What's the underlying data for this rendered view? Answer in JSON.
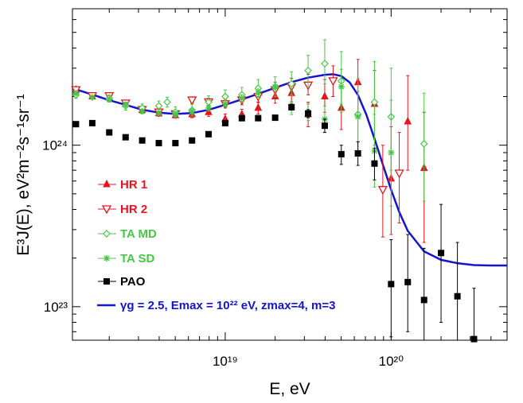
{
  "chart_data": {
    "type": "scatter",
    "xlabel": "E, eV",
    "ylabel": "E³J(E), eV²m⁻²s⁻¹sr⁻¹",
    "xscale": "log",
    "yscale": "log",
    "xlim": [
      1.2e+18,
      5e+20
    ],
    "ylim": [
      6.2e+22,
      7e+24
    ],
    "x_tick_labels": [
      "10¹⁹",
      "10²⁰"
    ],
    "y_tick_labels": [
      "10²³",
      "10²⁴"
    ],
    "legend_position": "bottom-left",
    "grid": false,
    "series": [
      {
        "name": "HR 1",
        "color": "#e8141c",
        "marker": "triangle-filled",
        "points": [
          {
            "x": 1.26e+18,
            "y": 2.2e+24,
            "lo": 2.12e+24,
            "hi": 2.28e+24
          },
          {
            "x": 1.58e+18,
            "y": 2e+24,
            "lo": 1.94e+24,
            "hi": 2.07e+24
          },
          {
            "x": 2e+18,
            "y": 1.97e+24,
            "lo": 1.91e+24,
            "hi": 2.04e+24
          },
          {
            "x": 2.51e+18,
            "y": 1.8e+24,
            "lo": 1.74e+24,
            "hi": 1.86e+24
          },
          {
            "x": 3.16e+18,
            "y": 1.65e+24,
            "lo": 1.59e+24,
            "hi": 1.71e+24
          },
          {
            "x": 3.98e+18,
            "y": 1.57e+24,
            "lo": 1.51e+24,
            "hi": 1.63e+24
          },
          {
            "x": 5.01e+18,
            "y": 1.53e+24,
            "lo": 1.47e+24,
            "hi": 1.59e+24
          },
          {
            "x": 6.31e+18,
            "y": 1.55e+24,
            "lo": 1.48e+24,
            "hi": 1.62e+24
          },
          {
            "x": 7.94e+18,
            "y": 1.6e+24,
            "lo": 1.51e+24,
            "hi": 1.69e+24
          },
          {
            "x": 1e+19,
            "y": 1.45e+24,
            "lo": 1.35e+24,
            "hi": 1.56e+24
          },
          {
            "x": 1.26e+19,
            "y": 1.55e+24,
            "lo": 1.44e+24,
            "hi": 1.67e+24
          },
          {
            "x": 1.58e+19,
            "y": 1.7e+24,
            "lo": 1.56e+24,
            "hi": 1.85e+24
          },
          {
            "x": 2e+19,
            "y": 2e+24,
            "lo": 1.82e+24,
            "hi": 2.2e+24
          },
          {
            "x": 2.51e+19,
            "y": 2.1e+24,
            "lo": 1.85e+24,
            "hi": 2.4e+24
          },
          {
            "x": 3.16e+19,
            "y": 1.55e+24,
            "lo": 1.3e+24,
            "hi": 1.85e+24
          },
          {
            "x": 3.98e+19,
            "y": 2e+24,
            "lo": 1.6e+24,
            "hi": 2.55e+24
          },
          {
            "x": 5.01e+19,
            "y": 1.7e+24,
            "lo": 1.25e+24,
            "hi": 2.3e+24
          },
          {
            "x": 6.31e+19,
            "y": 2.45e+24,
            "lo": 1.6e+24,
            "hi": 3.4e+24
          },
          {
            "x": 7.94e+19,
            "y": 1.8e+24,
            "lo": 1e+24,
            "hi": 2.9e+24
          },
          {
            "x": 1e+20,
            "y": 6.2e+23,
            "lo": 2.8e+23,
            "hi": 1.3e+24
          },
          {
            "x": 1.26e+20,
            "y": 1.4e+24,
            "lo": 7e+23,
            "hi": 2.7e+24
          },
          {
            "x": 1.58e+20,
            "y": 7.2e+23,
            "lo": 2.5e+23,
            "hi": 1.6e+24
          }
        ]
      },
      {
        "name": "HR 2",
        "color": "#e8141c",
        "marker": "triangle-down-open",
        "points": [
          {
            "x": 1.26e+18,
            "y": 2.2e+24,
            "lo": 2.14e+24,
            "hi": 2.26e+24
          },
          {
            "x": 1.58e+18,
            "y": 2.02e+24,
            "lo": 1.96e+24,
            "hi": 2.08e+24
          },
          {
            "x": 2e+18,
            "y": 2.02e+24,
            "lo": 1.96e+24,
            "hi": 2.08e+24
          },
          {
            "x": 2.51e+18,
            "y": 1.82e+24,
            "lo": 1.76e+24,
            "hi": 1.88e+24
          },
          {
            "x": 3.16e+18,
            "y": 1.66e+24,
            "lo": 1.6e+24,
            "hi": 1.72e+24
          },
          {
            "x": 3.98e+18,
            "y": 1.6e+24,
            "lo": 1.54e+24,
            "hi": 1.66e+24
          },
          {
            "x": 5.01e+18,
            "y": 1.56e+24,
            "lo": 1.5e+24,
            "hi": 1.62e+24
          },
          {
            "x": 6.31e+18,
            "y": 1.9e+24,
            "lo": 1.82e+24,
            "hi": 1.98e+24
          },
          {
            "x": 7.94e+18,
            "y": 1.85e+24,
            "lo": 1.76e+24,
            "hi": 1.95e+24
          },
          {
            "x": 1e+19,
            "y": 1.8e+24,
            "lo": 1.7e+24,
            "hi": 1.92e+24
          },
          {
            "x": 1.26e+19,
            "y": 1.9e+24,
            "lo": 1.78e+24,
            "hi": 2.04e+24
          },
          {
            "x": 1.58e+19,
            "y": 2e+24,
            "lo": 1.84e+24,
            "hi": 2.18e+24
          },
          {
            "x": 2e+19,
            "y": 2.2e+24,
            "lo": 2e+24,
            "hi": 2.45e+24
          },
          {
            "x": 2.51e+19,
            "y": 2.3e+24,
            "lo": 2.05e+24,
            "hi": 2.6e+24
          },
          {
            "x": 3.16e+19,
            "y": 2.35e+24,
            "lo": 2.05e+24,
            "hi": 2.75e+24
          },
          {
            "x": 4.47e+19,
            "y": 2.5e+24,
            "lo": 2e+24,
            "hi": 3.1e+24
          },
          {
            "x": 8.91e+19,
            "y": 5.3e+23,
            "lo": 2.7e+23,
            "hi": 1e+24
          },
          {
            "x": 1.12e+20,
            "y": 6.7e+23,
            "lo": 3.3e+23,
            "hi": 1.2e+24
          }
        ]
      },
      {
        "name": "TA MD",
        "color": "#46c846",
        "marker": "diamond-open",
        "points": [
          {
            "x": 1.26e+18,
            "y": 2.05e+24,
            "lo": 1.95e+24,
            "hi": 2.15e+24
          },
          {
            "x": 2e+18,
            "y": 1.95e+24,
            "lo": 1.85e+24,
            "hi": 2.05e+24
          },
          {
            "x": 2.51e+18,
            "y": 1.75e+24,
            "lo": 1.65e+24,
            "hi": 1.85e+24
          },
          {
            "x": 3.16e+18,
            "y": 1.7e+24,
            "lo": 1.6e+24,
            "hi": 1.8e+24
          },
          {
            "x": 3.98e+18,
            "y": 1.75e+24,
            "lo": 1.62e+24,
            "hi": 1.88e+24
          },
          {
            "x": 4.47e+18,
            "y": 1.85e+24,
            "lo": 1.72e+24,
            "hi": 1.98e+24
          },
          {
            "x": 5.01e+18,
            "y": 1.6e+24,
            "lo": 1.48e+24,
            "hi": 1.73e+24
          },
          {
            "x": 6.31e+18,
            "y": 1.65e+24,
            "lo": 1.52e+24,
            "hi": 1.79e+24
          },
          {
            "x": 7.94e+18,
            "y": 1.85e+24,
            "lo": 1.69e+24,
            "hi": 2.02e+24
          },
          {
            "x": 1e+19,
            "y": 2e+24,
            "lo": 1.82e+24,
            "hi": 2.2e+24
          },
          {
            "x": 1.26e+19,
            "y": 2.05e+24,
            "lo": 1.85e+24,
            "hi": 2.28e+24
          },
          {
            "x": 1.58e+19,
            "y": 2.25e+24,
            "lo": 2e+24,
            "hi": 2.55e+24
          },
          {
            "x": 2e+19,
            "y": 2.3e+24,
            "lo": 2e+24,
            "hi": 2.65e+24
          },
          {
            "x": 2.51e+19,
            "y": 2.4e+24,
            "lo": 2.05e+24,
            "hi": 2.85e+24
          },
          {
            "x": 3.16e+19,
            "y": 2.9e+24,
            "lo": 2.3e+24,
            "hi": 3.6e+24
          },
          {
            "x": 3.98e+19,
            "y": 3.2e+24,
            "lo": 2.4e+24,
            "hi": 4.5e+24
          },
          {
            "x": 5.01e+19,
            "y": 2.5e+24,
            "lo": 1.6e+24,
            "hi": 3.8e+24
          },
          {
            "x": 6.31e+19,
            "y": 1.55e+24,
            "lo": 9e+23,
            "hi": 2.6e+24
          },
          {
            "x": 7.94e+19,
            "y": 1.85e+24,
            "lo": 1e+24,
            "hi": 3.3e+24
          },
          {
            "x": 1e+20,
            "y": 1.5e+24,
            "lo": 7e+23,
            "hi": 3e+24
          },
          {
            "x": 1.58e+20,
            "y": 1.02e+24,
            "lo": 4.5e+23,
            "hi": 2.1e+24
          }
        ]
      },
      {
        "name": "TA SD",
        "color": "#46c846",
        "marker": "star",
        "points": [
          {
            "x": 1.26e+18,
            "y": 2.1e+24,
            "lo": 2.05e+24,
            "hi": 2.15e+24
          },
          {
            "x": 1.58e+18,
            "y": 1.98e+24,
            "lo": 1.93e+24,
            "hi": 2.03e+24
          },
          {
            "x": 2e+18,
            "y": 1.92e+24,
            "lo": 1.87e+24,
            "hi": 1.97e+24
          },
          {
            "x": 2.51e+18,
            "y": 1.78e+24,
            "lo": 1.73e+24,
            "hi": 1.83e+24
          },
          {
            "x": 3.16e+18,
            "y": 1.62e+24,
            "lo": 1.57e+24,
            "hi": 1.67e+24
          },
          {
            "x": 3.98e+18,
            "y": 1.58e+24,
            "lo": 1.53e+24,
            "hi": 1.63e+24
          },
          {
            "x": 5.01e+18,
            "y": 1.56e+24,
            "lo": 1.51e+24,
            "hi": 1.61e+24
          },
          {
            "x": 6.31e+18,
            "y": 1.62e+24,
            "lo": 1.56e+24,
            "hi": 1.68e+24
          },
          {
            "x": 7.94e+18,
            "y": 1.7e+24,
            "lo": 1.63e+24,
            "hi": 1.77e+24
          },
          {
            "x": 1e+19,
            "y": 1.8e+24,
            "lo": 1.72e+24,
            "hi": 1.88e+24
          },
          {
            "x": 1.26e+19,
            "y": 1.95e+24,
            "lo": 1.85e+24,
            "hi": 2.05e+24
          },
          {
            "x": 1.58e+19,
            "y": 2.1e+24,
            "lo": 1.98e+24,
            "hi": 2.23e+24
          },
          {
            "x": 2e+19,
            "y": 2.3e+24,
            "lo": 2.15e+24,
            "hi": 2.46e+24
          },
          {
            "x": 2.51e+19,
            "y": 1.7e+24,
            "lo": 1.55e+24,
            "hi": 1.86e+24
          },
          {
            "x": 3.16e+19,
            "y": 1.6e+24,
            "lo": 1.42e+24,
            "hi": 1.8e+24
          },
          {
            "x": 3.98e+19,
            "y": 1.45e+24,
            "lo": 1.2e+24,
            "hi": 1.75e+24
          },
          {
            "x": 5.01e+19,
            "y": 2.3e+24,
            "lo": 1.8e+24,
            "hi": 2.95e+24
          },
          {
            "x": 6.31e+19,
            "y": 1.5e+24,
            "lo": 1.05e+24,
            "hi": 2.15e+24
          },
          {
            "x": 7.94e+19,
            "y": 9.2e+23,
            "lo": 5.5e+23,
            "hi": 1.55e+24
          },
          {
            "x": 1e+20,
            "y": 9e+23,
            "lo": 4.2e+23,
            "hi": 1.9e+24
          }
        ]
      },
      {
        "name": "PAO",
        "color": "#000000",
        "marker": "square-filled",
        "points": [
          {
            "x": 1.26e+18,
            "y": 1.35e+24,
            "lo": 1.33e+24,
            "hi": 1.37e+24
          },
          {
            "x": 1.58e+18,
            "y": 1.37e+24,
            "lo": 1.35e+24,
            "hi": 1.39e+24
          },
          {
            "x": 2e+18,
            "y": 1.2e+24,
            "lo": 1.18e+24,
            "hi": 1.22e+24
          },
          {
            "x": 2.51e+18,
            "y": 1.12e+24,
            "lo": 1.1e+24,
            "hi": 1.14e+24
          },
          {
            "x": 3.16e+18,
            "y": 1.07e+24,
            "lo": 1.05e+24,
            "hi": 1.09e+24
          },
          {
            "x": 3.98e+18,
            "y": 1.03e+24,
            "lo": 1.01e+24,
            "hi": 1.05e+24
          },
          {
            "x": 5.01e+18,
            "y": 1.03e+24,
            "lo": 1.01e+24,
            "hi": 1.05e+24
          },
          {
            "x": 6.31e+18,
            "y": 1.07e+24,
            "lo": 1.05e+24,
            "hi": 1.09e+24
          },
          {
            "x": 7.94e+18,
            "y": 1.17e+24,
            "lo": 1.15e+24,
            "hi": 1.19e+24
          },
          {
            "x": 1e+19,
            "y": 1.37e+24,
            "lo": 1.34e+24,
            "hi": 1.4e+24
          },
          {
            "x": 1.26e+19,
            "y": 1.47e+24,
            "lo": 1.44e+24,
            "hi": 1.5e+24
          },
          {
            "x": 1.58e+19,
            "y": 1.47e+24,
            "lo": 1.43e+24,
            "hi": 1.51e+24
          },
          {
            "x": 2e+19,
            "y": 1.48e+24,
            "lo": 1.43e+24,
            "hi": 1.53e+24
          },
          {
            "x": 2.51e+19,
            "y": 1.72e+24,
            "lo": 1.65e+24,
            "hi": 1.8e+24
          },
          {
            "x": 3.16e+19,
            "y": 1.57e+24,
            "lo": 1.48e+24,
            "hi": 1.66e+24
          },
          {
            "x": 3.98e+19,
            "y": 1.32e+24,
            "lo": 1.2e+24,
            "hi": 1.45e+24
          },
          {
            "x": 5.01e+19,
            "y": 8.8e+23,
            "lo": 7.6e+23,
            "hi": 1e+24
          },
          {
            "x": 6.31e+19,
            "y": 8.9e+23,
            "lo": 7.5e+23,
            "hi": 1.05e+24
          },
          {
            "x": 7.94e+19,
            "y": 7.7e+23,
            "lo": 6.1e+23,
            "hi": 9.6e+23
          },
          {
            "x": 1e+20,
            "y": 1.38e+23,
            "lo": 6.5e+22,
            "hi": 2.6e+23
          },
          {
            "x": 1.26e+20,
            "y": 1.42e+23,
            "lo": 7e+22,
            "hi": 2.8e+23
          },
          {
            "x": 1.58e+20,
            "y": 1.1e+23,
            "lo": 5e+22,
            "hi": 2.3e+23
          },
          {
            "x": 2e+20,
            "y": 2.15e+23,
            "lo": 8e+22,
            "hi": 4.3e+23
          },
          {
            "x": 2.51e+20,
            "y": 1.16e+23,
            "lo": 5e+22,
            "hi": 2.5e+23
          },
          {
            "x": 3.16e+20,
            "y": 6.3e+22,
            "lo": 3e+22,
            "hi": 1.3e+23
          }
        ]
      },
      {
        "name": "γg = 2.5, Emax = 10²² eV, zmax=4, m=3",
        "color": "#1414d2",
        "marker": "line",
        "points": [
          {
            "x": 1.2e+18,
            "y": 2.25e+24
          },
          {
            "x": 1.6e+18,
            "y": 2.05e+24
          },
          {
            "x": 2e+18,
            "y": 1.9e+24
          },
          {
            "x": 2.5e+18,
            "y": 1.78e+24
          },
          {
            "x": 3.16e+18,
            "y": 1.66e+24
          },
          {
            "x": 4e+18,
            "y": 1.59e+24
          },
          {
            "x": 5e+18,
            "y": 1.56e+24
          },
          {
            "x": 6.3e+18,
            "y": 1.58e+24
          },
          {
            "x": 8e+18,
            "y": 1.66e+24
          },
          {
            "x": 1e+19,
            "y": 1.78e+24
          },
          {
            "x": 1.26e+19,
            "y": 1.92e+24
          },
          {
            "x": 1.58e+19,
            "y": 2.08e+24
          },
          {
            "x": 2e+19,
            "y": 2.27e+24
          },
          {
            "x": 2.51e+19,
            "y": 2.46e+24
          },
          {
            "x": 3.16e+19,
            "y": 2.62e+24
          },
          {
            "x": 3.98e+19,
            "y": 2.73e+24
          },
          {
            "x": 4.47e+19,
            "y": 2.75e+24
          },
          {
            "x": 5.01e+19,
            "y": 2.68e+24
          },
          {
            "x": 5.62e+19,
            "y": 2.45e+24
          },
          {
            "x": 6.31e+19,
            "y": 2.05e+24
          },
          {
            "x": 7.08e+19,
            "y": 1.55e+24
          },
          {
            "x": 7.94e+19,
            "y": 1.1e+24
          },
          {
            "x": 8.91e+19,
            "y": 7.6e+23
          },
          {
            "x": 1e+20,
            "y": 5.3e+23
          },
          {
            "x": 1.12e+20,
            "y": 3.85e+23
          },
          {
            "x": 1.26e+20,
            "y": 2.95e+23
          },
          {
            "x": 1.58e+20,
            "y": 2.2e+23
          },
          {
            "x": 2e+20,
            "y": 1.95e+23
          },
          {
            "x": 2.51e+20,
            "y": 1.86e+23
          },
          {
            "x": 3.16e+20,
            "y": 1.81e+23
          },
          {
            "x": 3.98e+20,
            "y": 1.8e+23
          },
          {
            "x": 5e+20,
            "y": 1.8e+23
          }
        ]
      }
    ]
  }
}
